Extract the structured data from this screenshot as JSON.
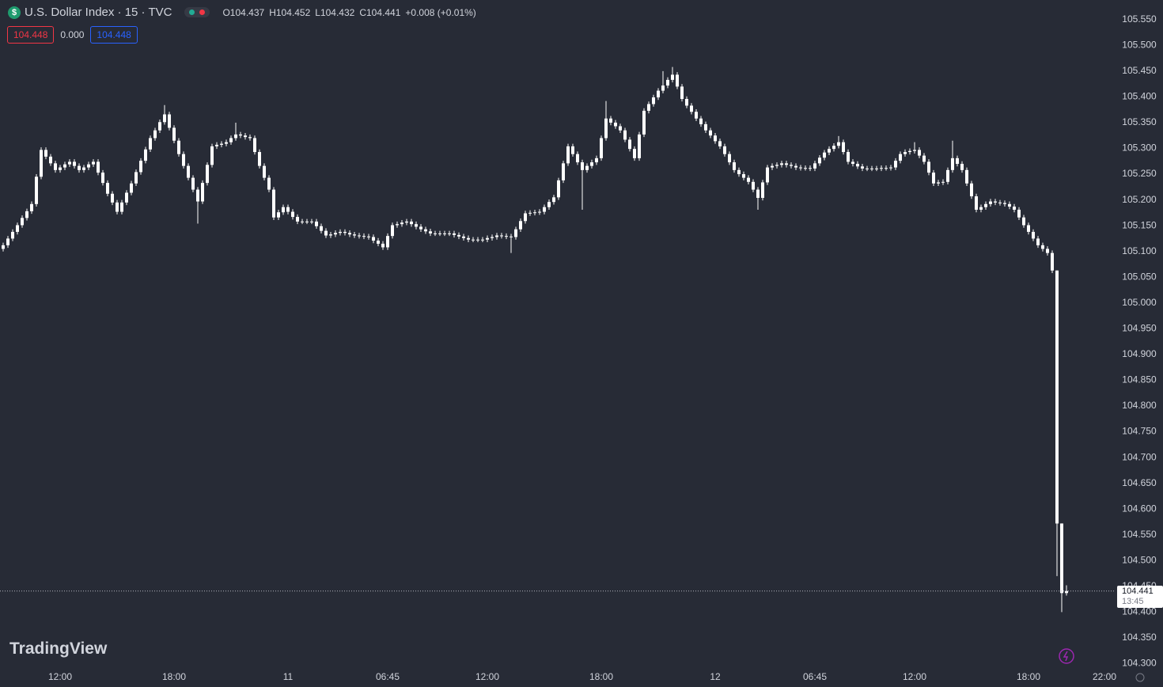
{
  "header": {
    "icon": "$",
    "symbol": "U.S. Dollar Index · 15 · TVC",
    "ohlc": [
      {
        "label": "O",
        "value": "104.437"
      },
      {
        "label": "H",
        "value": "104.452"
      },
      {
        "label": "L",
        "value": "104.432"
      },
      {
        "label": "C",
        "value": "104.441"
      }
    ],
    "change": "+0.008 (+0.01%)",
    "bid": "104.448",
    "spread": "0.000",
    "ask": "104.448"
  },
  "logo": "TradingView",
  "chart_data": {
    "type": "candlestick",
    "color": "#ffffff",
    "grid": false,
    "categories": [
      null,
      null,
      null,
      null,
      null,
      null,
      null,
      null,
      null,
      null,
      null,
      null,
      "12:00",
      null,
      null,
      null,
      null,
      null,
      null,
      null,
      null,
      null,
      null,
      null,
      null,
      null,
      null,
      null,
      null,
      null,
      null,
      null,
      null,
      null,
      null,
      null,
      "18:00",
      null,
      null,
      null,
      null,
      null,
      null,
      null,
      null,
      null,
      null,
      null,
      null,
      null,
      null,
      null,
      null,
      null,
      null,
      null,
      null,
      null,
      null,
      null,
      "11",
      null,
      null,
      null,
      null,
      null,
      null,
      null,
      null,
      null,
      null,
      null,
      null,
      null,
      null,
      null,
      null,
      null,
      null,
      null,
      null,
      "06:45",
      null,
      null,
      null,
      null,
      null,
      null,
      null,
      null,
      null,
      null,
      null,
      null,
      null,
      null,
      null,
      null,
      null,
      null,
      null,
      null,
      "12:00",
      null,
      null,
      null,
      null,
      null,
      null,
      null,
      null,
      null,
      null,
      null,
      null,
      null,
      null,
      null,
      null,
      null,
      null,
      null,
      null,
      null,
      null,
      null,
      "18:00",
      null,
      null,
      null,
      null,
      null,
      null,
      null,
      null,
      null,
      null,
      null,
      null,
      null,
      null,
      null,
      null,
      null,
      null,
      null,
      null,
      null,
      null,
      null,
      "12",
      null,
      null,
      null,
      null,
      null,
      null,
      null,
      null,
      null,
      null,
      null,
      null,
      null,
      null,
      null,
      null,
      null,
      null,
      null,
      null,
      "06:45",
      null,
      null,
      null,
      null,
      null,
      null,
      null,
      null,
      null,
      null,
      null,
      null,
      null,
      null,
      null,
      null,
      null,
      null,
      null,
      null,
      "12:00",
      null,
      null,
      null,
      null,
      null,
      null,
      null,
      null,
      null,
      null,
      null,
      null,
      null,
      null,
      null,
      null,
      null,
      null,
      null,
      null,
      null,
      null,
      null,
      "18:00",
      null,
      null,
      null,
      null,
      null,
      null,
      null,
      null,
      null,
      null,
      null,
      null,
      null,
      null,
      null,
      "22:00",
      null,
      null
    ],
    "open": [
      105.105,
      105.112,
      105.125,
      105.138,
      105.151,
      105.165,
      105.178,
      105.192,
      105.245,
      105.297,
      105.284,
      105.271,
      105.258,
      105.263,
      105.269,
      105.274,
      105.266,
      105.258,
      105.263,
      105.269,
      105.274,
      105.253,
      105.233,
      105.212,
      105.195,
      105.177,
      105.195,
      105.214,
      105.232,
      105.254,
      105.276,
      105.298,
      105.32,
      105.335,
      105.351,
      105.366,
      105.34,
      105.315,
      105.289,
      105.266,
      105.243,
      105.22,
      105.197,
      105.233,
      105.268,
      105.304,
      105.307,
      105.309,
      105.312,
      105.32,
      105.327,
      105.325,
      105.322,
      105.32,
      105.293,
      105.266,
      105.243,
      105.22,
      105.166,
      105.176,
      105.186,
      105.177,
      105.167,
      105.158,
      105.158,
      105.158,
      105.158,
      105.149,
      105.14,
      105.131,
      105.133,
      105.136,
      105.138,
      105.136,
      105.133,
      105.131,
      105.13,
      105.129,
      105.128,
      105.121,
      105.115,
      105.108,
      105.13,
      105.151,
      105.153,
      105.156,
      105.158,
      105.153,
      105.148,
      105.143,
      105.139,
      105.135,
      105.135,
      105.135,
      105.135,
      105.135,
      105.132,
      105.129,
      105.126,
      105.123,
      105.123,
      105.123,
      105.123,
      105.126,
      105.128,
      105.131,
      105.13,
      105.129,
      105.128,
      105.143,
      105.159,
      105.174,
      105.175,
      105.176,
      105.177,
      105.186,
      105.196,
      105.205,
      105.238,
      105.271,
      105.304,
      105.289,
      105.273,
      105.258,
      105.266,
      105.273,
      105.281,
      105.32,
      105.358,
      105.35,
      105.343,
      105.335,
      105.317,
      105.299,
      105.281,
      105.327,
      105.373,
      105.386,
      105.399,
      105.412,
      105.422,
      105.433,
      105.443,
      105.42,
      105.396,
      105.383,
      105.371,
      105.358,
      105.347,
      105.335,
      105.325,
      105.314,
      105.304,
      105.289,
      105.273,
      105.258,
      105.25,
      105.243,
      105.235,
      105.22,
      105.204,
      105.234,
      105.263,
      105.266,
      105.268,
      105.271,
      105.268,
      105.266,
      105.263,
      105.262,
      105.262,
      105.261,
      105.271,
      105.282,
      105.292,
      105.299,
      105.305,
      105.312,
      105.293,
      105.274,
      105.27,
      105.265,
      105.261,
      105.261,
      105.261,
      105.261,
      105.262,
      105.262,
      105.263,
      105.276,
      105.289,
      105.293,
      105.295,
      105.297,
      105.286,
      105.274,
      105.253,
      105.232,
      105.234,
      105.235,
      105.258,
      105.281,
      105.27,
      105.258,
      105.232,
      105.207,
      105.181,
      105.186,
      105.192,
      105.197,
      105.195,
      105.194,
      105.192,
      105.187,
      105.181,
      105.166,
      105.151,
      105.138,
      105.125,
      105.112,
      105.105,
      105.097,
      105.063,
      104.572,
      104.437,
      null,
      null,
      null,
      null,
      null,
      null,
      null,
      null,
      null,
      null
    ],
    "high": [
      105.117,
      105.13,
      105.143,
      105.156,
      105.17,
      105.183,
      105.197,
      105.25,
      105.302,
      105.302,
      105.289,
      105.276,
      105.268,
      105.274,
      105.279,
      105.279,
      105.271,
      105.268,
      105.274,
      105.279,
      105.279,
      105.258,
      105.238,
      105.217,
      105.2,
      105.2,
      105.219,
      105.237,
      105.259,
      105.281,
      105.303,
      105.325,
      105.34,
      105.356,
      105.384,
      105.371,
      105.345,
      105.32,
      105.294,
      105.271,
      105.248,
      105.225,
      105.238,
      105.273,
      105.309,
      105.312,
      105.314,
      105.317,
      105.325,
      105.35,
      105.332,
      105.33,
      105.327,
      105.325,
      105.298,
      105.271,
      105.248,
      105.225,
      105.181,
      105.191,
      105.191,
      105.182,
      105.172,
      105.163,
      105.163,
      105.163,
      105.163,
      105.154,
      105.145,
      105.138,
      105.141,
      105.143,
      105.143,
      105.141,
      105.138,
      105.136,
      105.135,
      105.134,
      105.133,
      105.126,
      105.12,
      105.135,
      105.156,
      105.158,
      105.161,
      105.163,
      105.163,
      105.158,
      105.153,
      105.148,
      105.144,
      105.14,
      105.14,
      105.14,
      105.14,
      105.14,
      105.137,
      105.134,
      105.131,
      105.128,
      105.128,
      105.128,
      105.131,
      105.133,
      105.136,
      105.136,
      105.135,
      105.134,
      105.148,
      105.164,
      105.179,
      105.18,
      105.181,
      105.182,
      105.191,
      105.201,
      105.21,
      105.243,
      105.276,
      105.309,
      105.309,
      105.294,
      105.278,
      105.271,
      105.278,
      105.286,
      105.325,
      105.392,
      105.363,
      105.355,
      105.348,
      105.34,
      105.322,
      105.304,
      105.332,
      105.378,
      105.391,
      105.404,
      105.417,
      105.45,
      105.438,
      105.458,
      105.448,
      105.425,
      105.401,
      105.388,
      105.376,
      105.363,
      105.352,
      105.34,
      105.33,
      105.319,
      105.309,
      105.294,
      105.278,
      105.263,
      105.255,
      105.248,
      105.24,
      105.225,
      105.239,
      105.268,
      105.271,
      105.273,
      105.276,
      105.276,
      105.273,
      105.271,
      105.268,
      105.267,
      105.267,
      105.276,
      105.287,
      105.297,
      105.304,
      105.31,
      105.324,
      105.317,
      105.298,
      105.279,
      105.275,
      105.27,
      105.266,
      105.266,
      105.266,
      105.267,
      105.267,
      105.268,
      105.281,
      105.294,
      105.298,
      105.3,
      105.312,
      105.302,
      105.291,
      105.279,
      105.258,
      105.239,
      105.24,
      105.263,
      105.315,
      105.286,
      105.275,
      105.263,
      105.237,
      105.212,
      105.191,
      105.197,
      105.202,
      105.202,
      105.2,
      105.199,
      105.197,
      105.192,
      105.186,
      105.171,
      105.156,
      105.143,
      105.13,
      105.117,
      105.11,
      105.102,
      105.063,
      104.572,
      104.452,
      null,
      null,
      null,
      null,
      null,
      null,
      null,
      null,
      null,
      null
    ],
    "low": [
      105.1,
      105.107,
      105.12,
      105.133,
      105.146,
      105.16,
      105.173,
      105.187,
      105.24,
      105.279,
      105.266,
      105.253,
      105.253,
      105.258,
      105.264,
      105.261,
      105.253,
      105.253,
      105.258,
      105.264,
      105.248,
      105.228,
      105.207,
      105.19,
      105.172,
      105.172,
      105.19,
      105.209,
      105.227,
      105.249,
      105.271,
      105.293,
      105.315,
      105.33,
      105.346,
      105.335,
      105.31,
      105.284,
      105.261,
      105.238,
      105.215,
      105.154,
      105.192,
      105.228,
      105.263,
      105.299,
      105.302,
      105.304,
      105.307,
      105.315,
      105.32,
      105.317,
      105.315,
      105.288,
      105.261,
      105.238,
      105.215,
      105.161,
      105.161,
      105.171,
      105.172,
      105.162,
      105.153,
      105.153,
      105.153,
      105.153,
      105.144,
      105.135,
      105.126,
      105.126,
      105.128,
      105.131,
      105.131,
      105.128,
      105.126,
      105.125,
      105.124,
      105.123,
      105.116,
      105.11,
      105.103,
      105.103,
      105.125,
      105.146,
      105.148,
      105.151,
      105.148,
      105.143,
      105.138,
      105.134,
      105.13,
      105.13,
      105.13,
      105.13,
      105.13,
      105.127,
      105.124,
      105.121,
      105.118,
      105.118,
      105.118,
      105.118,
      105.118,
      105.121,
      105.123,
      105.125,
      105.124,
      105.097,
      105.123,
      105.138,
      105.154,
      105.169,
      105.17,
      105.171,
      105.172,
      105.181,
      105.191,
      105.2,
      105.233,
      105.266,
      105.284,
      105.268,
      105.181,
      105.253,
      105.261,
      105.268,
      105.276,
      105.315,
      105.345,
      105.338,
      105.33,
      105.312,
      105.294,
      105.276,
      105.276,
      105.322,
      105.368,
      105.381,
      105.394,
      105.407,
      105.417,
      105.428,
      105.415,
      105.391,
      105.378,
      105.366,
      105.353,
      105.342,
      105.33,
      105.32,
      105.309,
      105.299,
      105.284,
      105.268,
      105.253,
      105.245,
      105.238,
      105.23,
      105.215,
      105.181,
      105.199,
      105.229,
      105.258,
      105.261,
      105.263,
      105.263,
      105.261,
      105.258,
      105.257,
      105.257,
      105.256,
      105.256,
      105.266,
      105.277,
      105.287,
      105.294,
      105.3,
      105.288,
      105.269,
      105.265,
      105.26,
      105.256,
      105.256,
      105.256,
      105.256,
      105.256,
      105.257,
      105.257,
      105.258,
      105.271,
      105.284,
      105.288,
      105.29,
      105.281,
      105.269,
      105.248,
      105.227,
      105.227,
      105.229,
      105.23,
      105.253,
      105.265,
      105.253,
      105.227,
      105.202,
      105.176,
      105.176,
      105.181,
      105.187,
      105.19,
      105.189,
      105.187,
      105.182,
      105.176,
      105.161,
      105.146,
      105.133,
      105.12,
      105.107,
      105.1,
      105.092,
      105.058,
      104.47,
      104.4,
      104.432,
      null,
      null,
      null,
      null,
      null,
      null,
      null,
      null,
      null,
      null
    ],
    "close": [
      105.112,
      105.125,
      105.138,
      105.151,
      105.165,
      105.178,
      105.192,
      105.245,
      105.297,
      105.284,
      105.271,
      105.258,
      105.263,
      105.269,
      105.274,
      105.266,
      105.258,
      105.263,
      105.269,
      105.274,
      105.253,
      105.233,
      105.212,
      105.195,
      105.177,
      105.195,
      105.214,
      105.232,
      105.254,
      105.276,
      105.298,
      105.32,
      105.335,
      105.351,
      105.366,
      105.34,
      105.315,
      105.289,
      105.266,
      105.243,
      105.22,
      105.197,
      105.233,
      105.268,
      105.304,
      105.307,
      105.309,
      105.312,
      105.32,
      105.327,
      105.325,
      105.322,
      105.32,
      105.293,
      105.266,
      105.243,
      105.22,
      105.166,
      105.176,
      105.186,
      105.177,
      105.167,
      105.158,
      105.158,
      105.158,
      105.158,
      105.149,
      105.14,
      105.131,
      105.133,
      105.136,
      105.138,
      105.136,
      105.133,
      105.131,
      105.13,
      105.129,
      105.128,
      105.121,
      105.115,
      105.108,
      105.13,
      105.151,
      105.153,
      105.156,
      105.158,
      105.153,
      105.148,
      105.143,
      105.139,
      105.135,
      105.135,
      105.135,
      105.135,
      105.135,
      105.132,
      105.129,
      105.126,
      105.123,
      105.123,
      105.123,
      105.123,
      105.126,
      105.128,
      105.131,
      105.13,
      105.129,
      105.128,
      105.143,
      105.159,
      105.174,
      105.175,
      105.176,
      105.177,
      105.186,
      105.196,
      105.205,
      105.238,
      105.271,
      105.304,
      105.289,
      105.273,
      105.258,
      105.266,
      105.273,
      105.281,
      105.32,
      105.358,
      105.35,
      105.343,
      105.335,
      105.317,
      105.299,
      105.281,
      105.327,
      105.373,
      105.386,
      105.399,
      105.412,
      105.422,
      105.433,
      105.443,
      105.42,
      105.396,
      105.383,
      105.371,
      105.358,
      105.347,
      105.335,
      105.325,
      105.314,
      105.304,
      105.289,
      105.273,
      105.258,
      105.25,
      105.243,
      105.235,
      105.22,
      105.204,
      105.234,
      105.263,
      105.266,
      105.268,
      105.271,
      105.268,
      105.266,
      105.263,
      105.262,
      105.262,
      105.261,
      105.271,
      105.282,
      105.292,
      105.299,
      105.305,
      105.312,
      105.293,
      105.274,
      105.27,
      105.265,
      105.261,
      105.261,
      105.261,
      105.261,
      105.262,
      105.262,
      105.263,
      105.276,
      105.289,
      105.293,
      105.295,
      105.297,
      105.286,
      105.274,
      105.253,
      105.232,
      105.234,
      105.235,
      105.258,
      105.281,
      105.27,
      105.258,
      105.232,
      105.207,
      105.181,
      105.186,
      105.192,
      105.197,
      105.195,
      105.194,
      105.192,
      105.187,
      105.181,
      105.166,
      105.151,
      105.138,
      105.125,
      105.112,
      105.105,
      105.097,
      105.063,
      104.572,
      104.437,
      104.441,
      null,
      null,
      null,
      null,
      null,
      null,
      null,
      null,
      null,
      null
    ],
    "ylim": [
      104.29,
      105.588
    ],
    "yticks": [
      {
        "value": 105.55,
        "label": "105.550"
      },
      {
        "value": 105.5,
        "label": "105.500"
      },
      {
        "value": 105.45,
        "label": "105.450"
      },
      {
        "value": 105.4,
        "label": "105.400"
      },
      {
        "value": 105.35,
        "label": "105.350"
      },
      {
        "value": 105.3,
        "label": "105.300"
      },
      {
        "value": 105.25,
        "label": "105.250"
      },
      {
        "value": 105.2,
        "label": "105.200"
      },
      {
        "value": 105.15,
        "label": "105.150"
      },
      {
        "value": 105.1,
        "label": "105.100"
      },
      {
        "value": 105.05,
        "label": "105.050"
      },
      {
        "value": 105.0,
        "label": "105.000"
      },
      {
        "value": 104.95,
        "label": "104.950"
      },
      {
        "value": 104.9,
        "label": "104.900"
      },
      {
        "value": 104.85,
        "label": "104.850"
      },
      {
        "value": 104.8,
        "label": "104.800"
      },
      {
        "value": 104.75,
        "label": "104.750"
      },
      {
        "value": 104.7,
        "label": "104.700"
      },
      {
        "value": 104.65,
        "label": "104.650"
      },
      {
        "value": 104.6,
        "label": "104.600"
      },
      {
        "value": 104.55,
        "label": "104.550"
      },
      {
        "value": 104.5,
        "label": "104.500"
      },
      {
        "value": 104.45,
        "label": "104.450"
      },
      {
        "value": 104.4,
        "label": "104.400"
      },
      {
        "value": 104.35,
        "label": "104.350"
      },
      {
        "value": 104.3,
        "label": "104.300"
      }
    ],
    "price_line": {
      "label": "104.441",
      "countdown": "13:45"
    }
  }
}
